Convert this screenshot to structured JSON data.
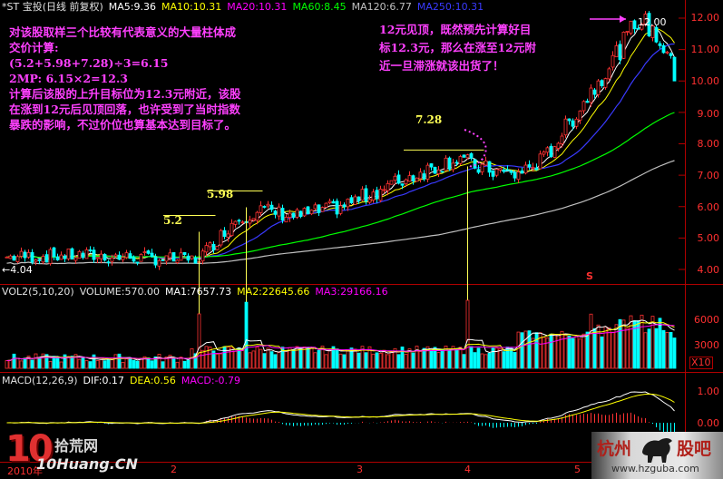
{
  "main_header": {
    "title": "*ST 宝投(日线 前复权)",
    "ma5": "MA5:9.36",
    "ma10": "MA10:10.31",
    "ma20": "MA20:10.31",
    "ma60": "MA60:8.45",
    "ma120": "MA120:6.77",
    "ma250": "MA250:10.31"
  },
  "vol_header": {
    "title": "VOL2(5,10,20)",
    "volume": "VOLUME:570.00",
    "ma1": "MA1:7657.73",
    "ma2": "MA2:22645.66",
    "ma3": "MA3:29166.16"
  },
  "macd_header": {
    "title": "MACD(12,26,9)",
    "dif": "DIF:0.17",
    "dea": "DEA:0.56",
    "macd": "MACD:-0.79"
  },
  "annotations": {
    "left_lines": [
      "对该股取样三个比较有代表意义的大量柱体成",
      "交价计算:",
      "(5.2+5.98+7.28)÷3=6.15",
      "2MP: 6.15×2=12.3",
      "计算后该股的上升目标位为12.3元附近，该股",
      "在涨到12元后见顶回落，也许受到了当时指数",
      "暴跌的影响，不过价位也算基本达到目标了。"
    ],
    "right_lines": [
      "12元见顶，既然预先计算好目",
      "标12.3元，那么在涨至12元附",
      "近一旦滞涨就该出货了！"
    ],
    "price_labels": [
      "5.2",
      "5.98",
      "7.28"
    ],
    "peak_label": "12.00",
    "low_label": "4.04",
    "s_marker": "S",
    "x10": "X10"
  },
  "axes": {
    "price_ticks": [
      "12.00",
      "11.00",
      "10.00",
      "9.00",
      "8.00",
      "7.00",
      "6.00",
      "5.00",
      "4.00"
    ],
    "vol_ticks": [
      "6000",
      "3000"
    ],
    "macd_ticks": [
      "1.00",
      "0.00"
    ],
    "date_ticks": [
      "2010年",
      "2",
      "3",
      "4",
      "5"
    ]
  },
  "watermarks": {
    "left_big": "10",
    "left_cn": "拾荒网",
    "left_url": "10Huang.CN",
    "right_cn1": "杭州",
    "right_cn2": "股吧",
    "right_url": "www.hzguba.com"
  },
  "colors": {
    "up": "#ff3232",
    "down": "#00ffff",
    "ma5": "#ffffff",
    "ma10": "#ffff00",
    "ma20": "#ff00ff",
    "ma60": "#00ff00",
    "ma120": "#c0c0c0",
    "ma250": "#3a3aff",
    "border": "#b00000",
    "annotation": "#ff40ff",
    "label": "#ffff55"
  }
}
